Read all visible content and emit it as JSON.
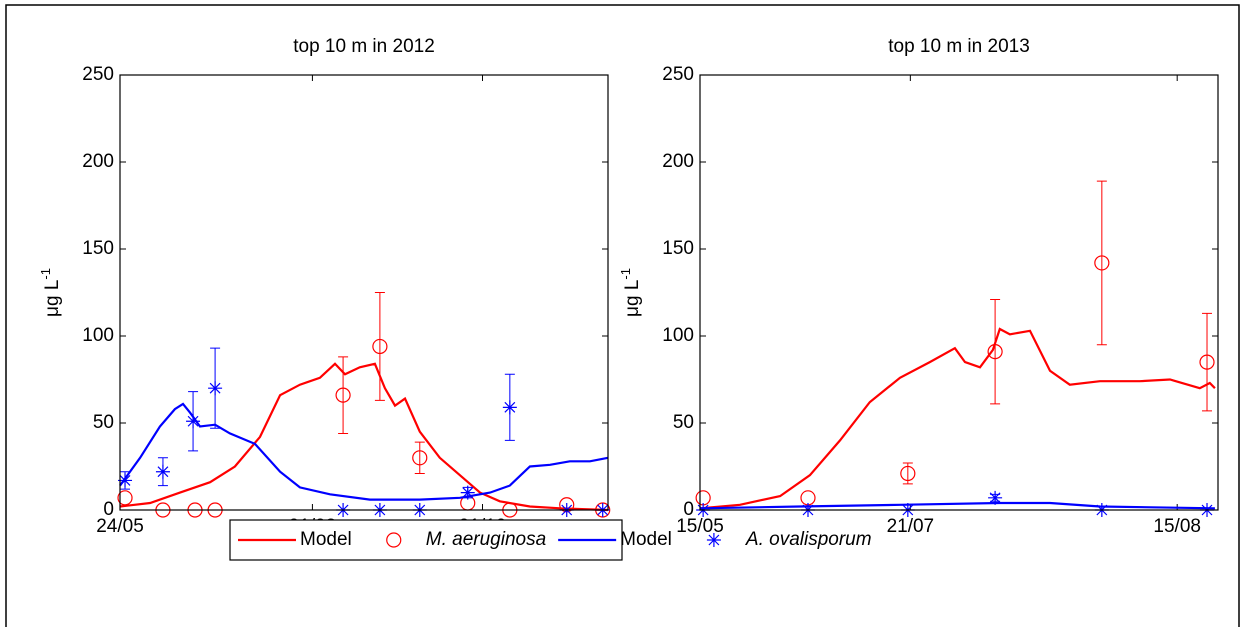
{
  "chart_data": [
    {
      "type": "line",
      "title": "top 10 m in 2012",
      "ylabel": "μg L",
      "ylabel_superscript": "-1",
      "xlim": [
        0,
        175
      ],
      "ylim": [
        0,
        250
      ],
      "yticks": [
        0,
        50,
        100,
        150,
        200,
        250
      ],
      "xticks": [
        {
          "value": 0,
          "label": "24/05"
        },
        {
          "value": 69,
          "label": "01/08"
        },
        {
          "value": 130,
          "label": "01/10"
        }
      ],
      "series": [
        {
          "name": "Model",
          "color": "#ff0000",
          "marker": "none",
          "x": [
            0,
            10.8,
            21.5,
            32.3,
            41.2,
            50.2,
            57.4,
            64.5,
            71.7,
            77.1,
            80.7,
            86,
            91.4,
            95,
            98.6,
            102.2,
            107.5,
            114.7,
            121.9,
            129.1,
            136.2,
            147,
            157.8,
            175
          ],
          "values": [
            2,
            4,
            10,
            16,
            25,
            42,
            66,
            72,
            76,
            84,
            78,
            82,
            84,
            70,
            60,
            64,
            45,
            30,
            20,
            10,
            5,
            2,
            1,
            0
          ]
        },
        {
          "name": "M. aeruginosa",
          "color": "#ff0000",
          "marker": "circle",
          "x": [
            1.8,
            15.4,
            26.9,
            34.1,
            80,
            93.2,
            107.5,
            124.7,
            139.8,
            160.2,
            173.1
          ],
          "values": [
            7,
            0,
            0,
            0,
            66,
            94,
            30,
            4,
            0,
            3,
            0
          ],
          "errors": [
            null,
            null,
            null,
            null,
            22,
            31,
            9,
            null,
            null,
            null,
            null
          ]
        },
        {
          "name": "Model",
          "color": "#0000ff",
          "marker": "none",
          "x": [
            0,
            7.2,
            14.3,
            19.7,
            22.6,
            25.1,
            28.7,
            34.1,
            39.4,
            48.4,
            57.4,
            64.5,
            75.3,
            89.6,
            107.5,
            121.9,
            132.7,
            139.8,
            147,
            154.2,
            161.3,
            168.5,
            175
          ],
          "values": [
            14,
            30,
            48,
            58,
            61,
            56,
            48,
            49,
            44,
            38,
            22,
            13,
            9,
            6,
            6,
            7,
            10,
            14,
            25,
            26,
            28,
            28,
            30
          ]
        },
        {
          "name": "A. ovalisporum",
          "color": "#0000ff",
          "marker": "star",
          "x": [
            1.8,
            15.4,
            26.2,
            34.1,
            80,
            93.2,
            107.5,
            124.7,
            139.8,
            160.2,
            173.1
          ],
          "values": [
            17,
            22,
            51,
            70,
            0,
            0,
            0,
            10,
            59,
            0,
            0
          ],
          "errors": [
            5,
            8,
            17,
            23,
            null,
            null,
            null,
            3,
            19,
            null,
            null
          ]
        }
      ]
    },
    {
      "type": "line",
      "title": "top 10 m in 2013",
      "ylabel": "μg L",
      "ylabel_superscript": "-1",
      "xlim": [
        0,
        165
      ],
      "ylim": [
        0,
        250
      ],
      "yticks": [
        0,
        50,
        100,
        150,
        200,
        250
      ],
      "xticks": [
        {
          "value": 0,
          "label": "15/05"
        },
        {
          "value": 67,
          "label": "21/07"
        },
        {
          "value": 152,
          "label": "15/08"
        }
      ],
      "series": [
        {
          "color": "#ff0000",
          "marker": "none",
          "x": [
            0,
            12.7,
            25.5,
            35,
            44.6,
            54.1,
            63.7,
            73.2,
            81.2,
            84.4,
            89.2,
            93.3,
            95.5,
            98.7,
            105.1,
            111.5,
            117.8,
            127.4,
            140.1,
            149.7,
            159.2,
            162.4,
            164
          ],
          "values": [
            1,
            3,
            8,
            20,
            40,
            62,
            76,
            85,
            93,
            85,
            82,
            92,
            104,
            101,
            103,
            80,
            72,
            74,
            74,
            75,
            70,
            73,
            70
          ]
        },
        {
          "color": "#ff0000",
          "marker": "circle",
          "x": [
            1,
            34.4,
            66.2,
            94,
            128,
            161.5
          ],
          "values": [
            7,
            7,
            21,
            91,
            142,
            85
          ],
          "errors": [
            null,
            null,
            6,
            30,
            47,
            28
          ]
        },
        {
          "color": "#0000ff",
          "marker": "none",
          "x": [
            0,
            31.8,
            63.7,
            95.5,
            111.5,
            127.4,
            164
          ],
          "values": [
            1,
            2,
            3,
            4,
            4,
            2,
            1
          ]
        },
        {
          "color": "#0000ff",
          "marker": "star",
          "x": [
            1,
            34.4,
            66.2,
            94,
            128,
            161.5
          ],
          "values": [
            0,
            0,
            0,
            7,
            0,
            0
          ],
          "errors": [
            null,
            null,
            null,
            2,
            null,
            null
          ]
        }
      ]
    }
  ]
}
